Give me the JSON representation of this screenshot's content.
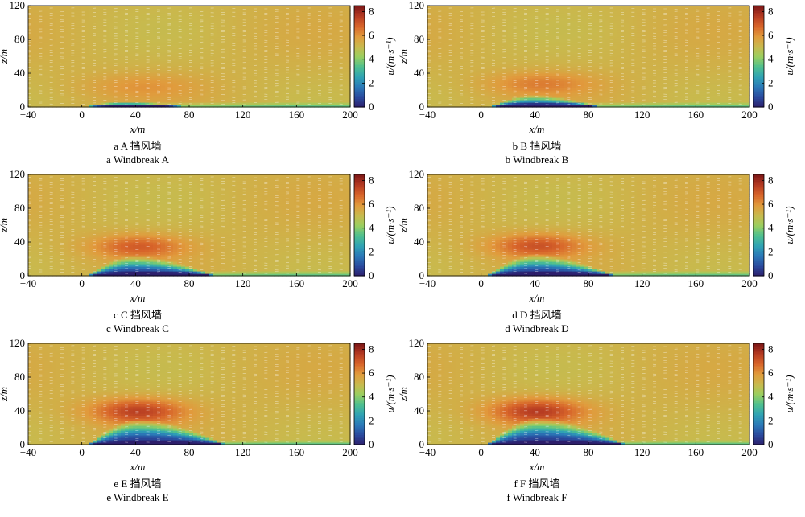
{
  "chart_data": [
    {
      "type": "heatmap",
      "caption_cn": "a  A 挡风墙",
      "caption_en": "a  Windbreak A",
      "xlabel": "x/m",
      "ylabel": "z/m",
      "colorbar_label": "u/(m·s⁻¹)",
      "xlim": [
        -40,
        200
      ],
      "ylim": [
        0,
        120
      ],
      "xticks": [
        -40,
        0,
        40,
        80,
        120,
        160,
        200
      ],
      "yticks": [
        0,
        40,
        80,
        120
      ],
      "clim": [
        0,
        8.5
      ],
      "cticks": [
        0,
        2,
        4,
        6,
        8
      ],
      "colormap": [
        "#2d1e6b",
        "#2a4a9e",
        "#2b7ab8",
        "#2fa3b4",
        "#4fc08f",
        "#9bcf5f",
        "#c9b94d",
        "#e19a3c",
        "#d8652a",
        "#b53a22",
        "#7d1717"
      ],
      "background_velocity": 5.3,
      "low_region": {
        "x_start": 0,
        "x_end": 82,
        "peak_x": 30,
        "peak_height": 4,
        "min_velocity": 0.3
      },
      "high_region": {
        "x": 45,
        "z": 25,
        "velocity": 5.9,
        "spread_x": 45,
        "spread_z": 15
      }
    },
    {
      "type": "heatmap",
      "caption_cn": "b  B 挡风墙",
      "caption_en": "b  Windbreak B",
      "xlabel": "x/m",
      "ylabel": "z/m",
      "colorbar_label": "u/(m·s⁻¹)",
      "xlim": [
        -40,
        200
      ],
      "ylim": [
        0,
        120
      ],
      "xticks": [
        -40,
        0,
        40,
        80,
        120,
        160,
        200
      ],
      "yticks": [
        0,
        40,
        80,
        120
      ],
      "clim": [
        0,
        8.5
      ],
      "cticks": [
        0,
        2,
        4,
        6,
        8
      ],
      "colormap": [
        "#2d1e6b",
        "#2a4a9e",
        "#2b7ab8",
        "#2fa3b4",
        "#4fc08f",
        "#9bcf5f",
        "#c9b94d",
        "#e19a3c",
        "#d8652a",
        "#b53a22",
        "#7d1717"
      ],
      "background_velocity": 5.3,
      "low_region": {
        "x_start": 6,
        "x_end": 90,
        "peak_x": 38,
        "peak_height": 9,
        "min_velocity": 0.3
      },
      "high_region": {
        "x": 45,
        "z": 28,
        "velocity": 6.3,
        "spread_x": 40,
        "spread_z": 14
      }
    },
    {
      "type": "heatmap",
      "caption_cn": "c  C 挡风墙",
      "caption_en": "c  Windbreak C",
      "xlabel": "x/m",
      "ylabel": "z/m",
      "colorbar_label": "u/(m·s⁻¹)",
      "xlim": [
        -40,
        200
      ],
      "ylim": [
        0,
        120
      ],
      "xticks": [
        -40,
        0,
        40,
        80,
        120,
        160,
        200
      ],
      "yticks": [
        0,
        40,
        80,
        120
      ],
      "clim": [
        0,
        8.5
      ],
      "cticks": [
        0,
        2,
        4,
        6,
        8
      ],
      "colormap": [
        "#2d1e6b",
        "#2a4a9e",
        "#2b7ab8",
        "#2fa3b4",
        "#4fc08f",
        "#9bcf5f",
        "#c9b94d",
        "#e19a3c",
        "#d8652a",
        "#b53a22",
        "#7d1717"
      ],
      "background_velocity": 5.3,
      "low_region": {
        "x_start": 4,
        "x_end": 100,
        "peak_x": 38,
        "peak_height": 15,
        "min_velocity": 0.3
      },
      "high_region": {
        "x": 42,
        "z": 35,
        "velocity": 6.9,
        "spread_x": 35,
        "spread_z": 14
      }
    },
    {
      "type": "heatmap",
      "caption_cn": "d  D 挡风墙",
      "caption_en": "d  Windbreak D",
      "xlabel": "x/m",
      "ylabel": "z/m",
      "colorbar_label": "u/(m·s⁻¹)",
      "xlim": [
        -40,
        200
      ],
      "ylim": [
        0,
        120
      ],
      "xticks": [
        -40,
        0,
        40,
        80,
        120,
        160,
        200
      ],
      "yticks": [
        0,
        40,
        80,
        120
      ],
      "clim": [
        0,
        8.5
      ],
      "cticks": [
        0,
        2,
        4,
        6,
        8
      ],
      "colormap": [
        "#2d1e6b",
        "#2a4a9e",
        "#2b7ab8",
        "#2fa3b4",
        "#4fc08f",
        "#9bcf5f",
        "#c9b94d",
        "#e19a3c",
        "#d8652a",
        "#b53a22",
        "#7d1717"
      ],
      "background_velocity": 5.3,
      "low_region": {
        "x_start": 4,
        "x_end": 100,
        "peak_x": 40,
        "peak_height": 16,
        "min_velocity": 0.3
      },
      "high_region": {
        "x": 42,
        "z": 36,
        "velocity": 7.1,
        "spread_x": 35,
        "spread_z": 14
      }
    },
    {
      "type": "heatmap",
      "caption_cn": "e  E 挡风墙",
      "caption_en": "e  Windbreak E",
      "xlabel": "x/m",
      "ylabel": "z/m",
      "colorbar_label": "u/(m·s⁻¹)",
      "xlim": [
        -40,
        200
      ],
      "ylim": [
        0,
        120
      ],
      "xticks": [
        -40,
        0,
        40,
        80,
        120,
        160,
        200
      ],
      "yticks": [
        0,
        40,
        80,
        120
      ],
      "clim": [
        0,
        8.5
      ],
      "cticks": [
        0,
        2,
        4,
        6,
        8
      ],
      "colormap": [
        "#2d1e6b",
        "#2a4a9e",
        "#2b7ab8",
        "#2fa3b4",
        "#4fc08f",
        "#9bcf5f",
        "#c9b94d",
        "#e19a3c",
        "#d8652a",
        "#b53a22",
        "#7d1717"
      ],
      "background_velocity": 5.3,
      "low_region": {
        "x_start": 4,
        "x_end": 108,
        "peak_x": 42,
        "peak_height": 19,
        "min_velocity": 0.3
      },
      "high_region": {
        "x": 42,
        "z": 40,
        "velocity": 7.5,
        "spread_x": 35,
        "spread_z": 15
      }
    },
    {
      "type": "heatmap",
      "caption_cn": "f  F 挡风墙",
      "caption_en": "f  Windbreak F",
      "xlabel": "x/m",
      "ylabel": "z/m",
      "colorbar_label": "u/(m·s⁻¹)",
      "xlim": [
        -40,
        200
      ],
      "ylim": [
        0,
        120
      ],
      "xticks": [
        -40,
        0,
        40,
        80,
        120,
        160,
        200
      ],
      "yticks": [
        0,
        40,
        80,
        120
      ],
      "clim": [
        0,
        8.5
      ],
      "cticks": [
        0,
        2,
        4,
        6,
        8
      ],
      "colormap": [
        "#2d1e6b",
        "#2a4a9e",
        "#2b7ab8",
        "#2fa3b4",
        "#4fc08f",
        "#9bcf5f",
        "#c9b94d",
        "#e19a3c",
        "#d8652a",
        "#b53a22",
        "#7d1717"
      ],
      "background_velocity": 5.3,
      "low_region": {
        "x_start": 4,
        "x_end": 108,
        "peak_x": 42,
        "peak_height": 20,
        "min_velocity": 0.3
      },
      "high_region": {
        "x": 42,
        "z": 40,
        "velocity": 7.6,
        "spread_x": 35,
        "spread_z": 15
      }
    }
  ]
}
